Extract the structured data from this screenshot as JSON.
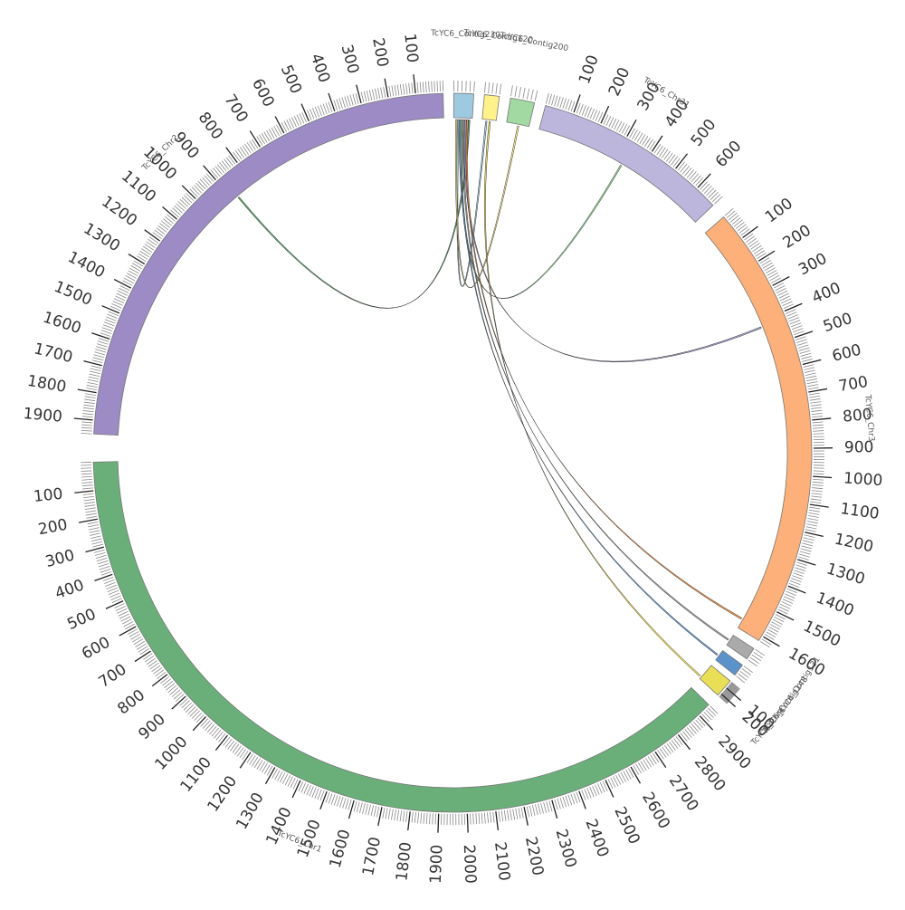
{
  "diagram": {
    "type": "circos",
    "segments": [
      {
        "id": "chr1",
        "label": "TcYC6_Chr1",
        "length": 2950,
        "color": "#6aaf7a",
        "tick_labels": [
          "100",
          "200",
          "300",
          "400",
          "500",
          "600",
          "700",
          "800",
          "900",
          "1000",
          "1100",
          "1200",
          "1300",
          "1400",
          "1500",
          "1600",
          "1700",
          "1800",
          "1900",
          "2000",
          "2100",
          "2200",
          "2300",
          "2400",
          "2500",
          "2600",
          "2700",
          "2800",
          "2900"
        ]
      },
      {
        "id": "chr2",
        "label": "TcYC6_Chr2",
        "length": 1950,
        "color": "#9c8bc4",
        "tick_labels": [
          "100",
          "200",
          "300",
          "400",
          "500",
          "600",
          "700",
          "800",
          "900",
          "1000",
          "1100",
          "1200",
          "1300",
          "1400",
          "1500",
          "1600",
          "1700",
          "1800",
          "1900"
        ]
      },
      {
        "id": "c230",
        "label": "TcYC6_Contig230",
        "length": 50,
        "color": "#9ecae1",
        "tick_labels": []
      },
      {
        "id": "c120",
        "label": "TcYC6_Contig120",
        "length": 40,
        "color": "#fff28a",
        "tick_labels": []
      },
      {
        "id": "c200",
        "label": "TcYC6_Contig200",
        "length": 60,
        "color": "#a2d8a2",
        "tick_labels": []
      },
      {
        "id": "chr31",
        "label": "TcYC6_Chr31",
        "length": 680,
        "color": "#bcb6dd",
        "tick_labels": [
          "100",
          "200",
          "300",
          "400",
          "500",
          "600"
        ]
      },
      {
        "id": "chr3",
        "label": "TcYC6_Chr3",
        "length": 1620,
        "color": "#fdb07a",
        "tick_labels": [
          "100",
          "200",
          "300",
          "400",
          "500",
          "600",
          "700",
          "800",
          "900",
          "1000",
          "1100",
          "1200",
          "1300",
          "1400",
          "1500",
          "1600"
        ]
      },
      {
        "id": "c131",
        "label": "TcYC6_Contig131",
        "length": 40,
        "color": "#aaaaaa",
        "tick_labels": []
      },
      {
        "id": "c148",
        "label": "TcYC6_Contig148",
        "length": 40,
        "color": "#5b92c9",
        "tick_labels": []
      },
      {
        "id": "chr4",
        "label": "TcYC6_Chr4",
        "length": 240,
        "color": "#e8df56",
        "tick_labels": [
          "100",
          "200"
        ]
      }
    ],
    "links": [
      {
        "source": "c230",
        "source_pos": 40,
        "target": "chr2",
        "target_pos": 880,
        "color": "#4f9a5a"
      },
      {
        "source": "c230",
        "source_pos": 20,
        "target": "chr31",
        "target_pos": 330,
        "color": "#8fd18f"
      },
      {
        "source": "c230",
        "source_pos": 30,
        "target": "chr3",
        "target_pos": 420,
        "color": "#a99cd4"
      },
      {
        "source": "c230",
        "source_pos": 25,
        "target": "c131",
        "target_pos": 20,
        "color": "#999999"
      },
      {
        "source": "c230",
        "source_pos": 35,
        "target": "chr3",
        "target_pos": 1580,
        "color": "#f08a3c"
      },
      {
        "source": "c230",
        "source_pos": 15,
        "target": "c148",
        "target_pos": 20,
        "color": "#5b92c9"
      },
      {
        "source": "c120",
        "source_pos": 20,
        "target": "chr4",
        "target_pos": 200,
        "color": "#f5e24a"
      },
      {
        "source": "c120",
        "source_pos": 10,
        "target": "c230",
        "target_pos": 10,
        "color": "#9ecae1"
      },
      {
        "source": "c200",
        "source_pos": 30,
        "target": "c230",
        "target_pos": 5,
        "color": "#fff28a"
      }
    ]
  }
}
